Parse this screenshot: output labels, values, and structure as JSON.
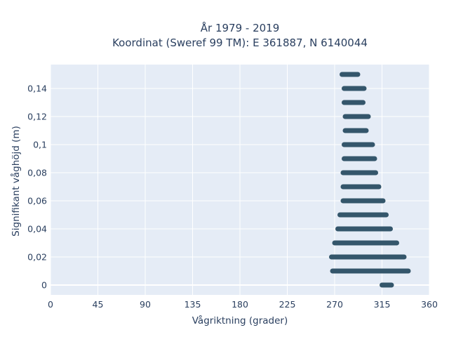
{
  "chart_data": {
    "type": "scatter",
    "title_line1": "År 1979 - 2019",
    "title_line2": "Koordinat (Sweref 99 TM): E 361887, N 6140044",
    "xlabel": "Vågriktning (grader)",
    "ylabel": "Signifikant våghöjd (m)",
    "xlim": [
      0,
      360
    ],
    "ylim": [
      -0.007,
      0.157
    ],
    "x_ticks": [
      0,
      45,
      90,
      135,
      180,
      225,
      270,
      315,
      360
    ],
    "x_tick_labels": [
      "0",
      "45",
      "90",
      "135",
      "180",
      "225",
      "270",
      "315",
      "360"
    ],
    "y_ticks": [
      0,
      0.02,
      0.04,
      0.06,
      0.08,
      0.1,
      0.12,
      0.14
    ],
    "y_tick_labels": [
      "0",
      "0,02",
      "0,04",
      "0,06",
      "0,08",
      "0,1",
      "0,12",
      "0,14"
    ],
    "grid": true,
    "plot_bgcolor": "#e5ecf6",
    "marker_color": "#34566b",
    "points_description": "Dense horizontal bands of points at each discrete wave height; each band spans the direction range below",
    "series": [
      {
        "bands": [
          {
            "y": 0.0,
            "x_min": 315,
            "x_max": 324
          },
          {
            "y": 0.01,
            "x_min": 268,
            "x_max": 340
          },
          {
            "y": 0.02,
            "x_min": 267,
            "x_max": 336
          },
          {
            "y": 0.03,
            "x_min": 270,
            "x_max": 329
          },
          {
            "y": 0.04,
            "x_min": 273,
            "x_max": 323
          },
          {
            "y": 0.05,
            "x_min": 275,
            "x_max": 319
          },
          {
            "y": 0.06,
            "x_min": 278,
            "x_max": 316
          },
          {
            "y": 0.07,
            "x_min": 278,
            "x_max": 312
          },
          {
            "y": 0.08,
            "x_min": 278,
            "x_max": 309
          },
          {
            "y": 0.09,
            "x_min": 279,
            "x_max": 308
          },
          {
            "y": 0.1,
            "x_min": 279,
            "x_max": 306
          },
          {
            "y": 0.11,
            "x_min": 280,
            "x_max": 300
          },
          {
            "y": 0.12,
            "x_min": 280,
            "x_max": 302
          },
          {
            "y": 0.13,
            "x_min": 279,
            "x_max": 297
          },
          {
            "y": 0.14,
            "x_min": 279,
            "x_max": 298
          },
          {
            "y": 0.15,
            "x_min": 277,
            "x_max": 292
          }
        ]
      }
    ]
  }
}
